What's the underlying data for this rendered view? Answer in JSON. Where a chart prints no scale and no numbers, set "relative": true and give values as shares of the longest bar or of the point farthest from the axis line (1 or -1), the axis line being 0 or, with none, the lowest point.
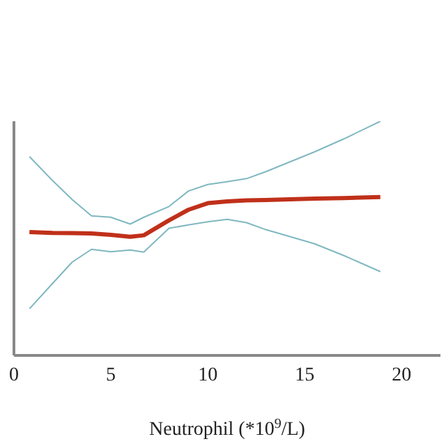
{
  "chart_data": {
    "type": "line",
    "xlabel": "Neutrophil (*10$^{9}$/L)",
    "relative": true,
    "xlim": [
      0,
      22
    ],
    "xticks": [
      0,
      5,
      10,
      15,
      20
    ],
    "grid": false,
    "marker": "none",
    "tick_labels": "x",
    "x": [
      0.8,
      2,
      3,
      4,
      5,
      6,
      6.7,
      8,
      9,
      10,
      11,
      12,
      13,
      15.5,
      17,
      18.9
    ],
    "series": [
      {
        "color": "#c0301a",
        "values": [
          0.527,
          0.523,
          0.522,
          0.521,
          0.515,
          0.507,
          0.513,
          0.577,
          0.622,
          0.65,
          0.658,
          0.662,
          0.664,
          0.67,
          0.672,
          0.676
        ]
      },
      {
        "color": "#7fb8c0",
        "values": [
          0.849,
          0.746,
          0.666,
          0.596,
          0.59,
          0.561,
          0.59,
          0.636,
          0.702,
          0.73,
          0.742,
          0.755,
          0.785,
          0.869,
          0.924,
          1
        ]
      },
      {
        "color": "#7fb8c0",
        "values": [
          0.199,
          0.308,
          0.398,
          0.453,
          0.443,
          0.45,
          0.441,
          0.543,
          0.557,
          0.571,
          0.581,
          0.567,
          0.537,
          0.477,
          0.427,
          0.358
        ]
      }
    ]
  }
}
